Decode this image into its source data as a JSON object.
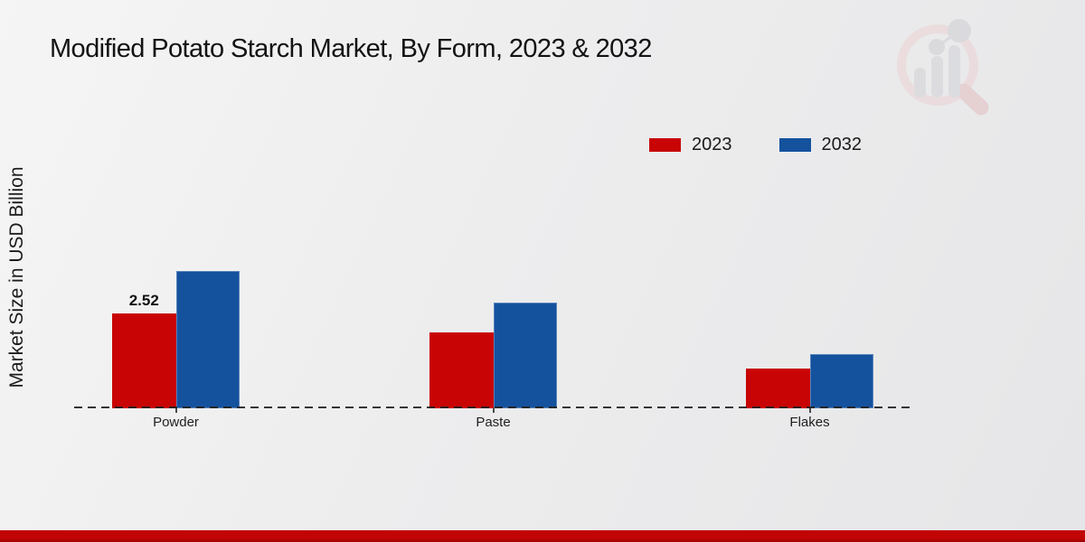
{
  "title": "Modified Potato Starch Market, By Form, 2023 & 2032",
  "y_axis_label": "Market Size in USD Billion",
  "legend": [
    {
      "label": "2023",
      "color": "#c80404"
    },
    {
      "label": "2032",
      "color": "#15529e"
    }
  ],
  "colors": {
    "series_2023": "#c80404",
    "series_2032": "#15529e",
    "footer_strip": "#c10404",
    "baseline": "#202020"
  },
  "chart_data": {
    "type": "bar",
    "categories": [
      "Powder",
      "Paste",
      "Flakes"
    ],
    "series": [
      {
        "name": "2023",
        "color": "#c80404",
        "values": [
          2.52,
          2.02,
          1.05
        ],
        "labels": [
          "2.52",
          "",
          ""
        ]
      },
      {
        "name": "2032",
        "color": "#15529e",
        "values": [
          3.65,
          2.81,
          1.44
        ],
        "labels": [
          "",
          "",
          ""
        ]
      }
    ],
    "title": "Modified Potato Starch Market, By Form, 2023 & 2032",
    "xlabel": "",
    "ylabel": "Market Size in USD Billion",
    "ylim": [
      0,
      4.5
    ],
    "grid": false,
    "legend_position": "top-right",
    "baseline_style": "dashed",
    "annotations": [
      {
        "target": "Powder 2023",
        "text": "2.52"
      }
    ]
  },
  "watermark": {
    "name": "market-research-future-logo"
  }
}
